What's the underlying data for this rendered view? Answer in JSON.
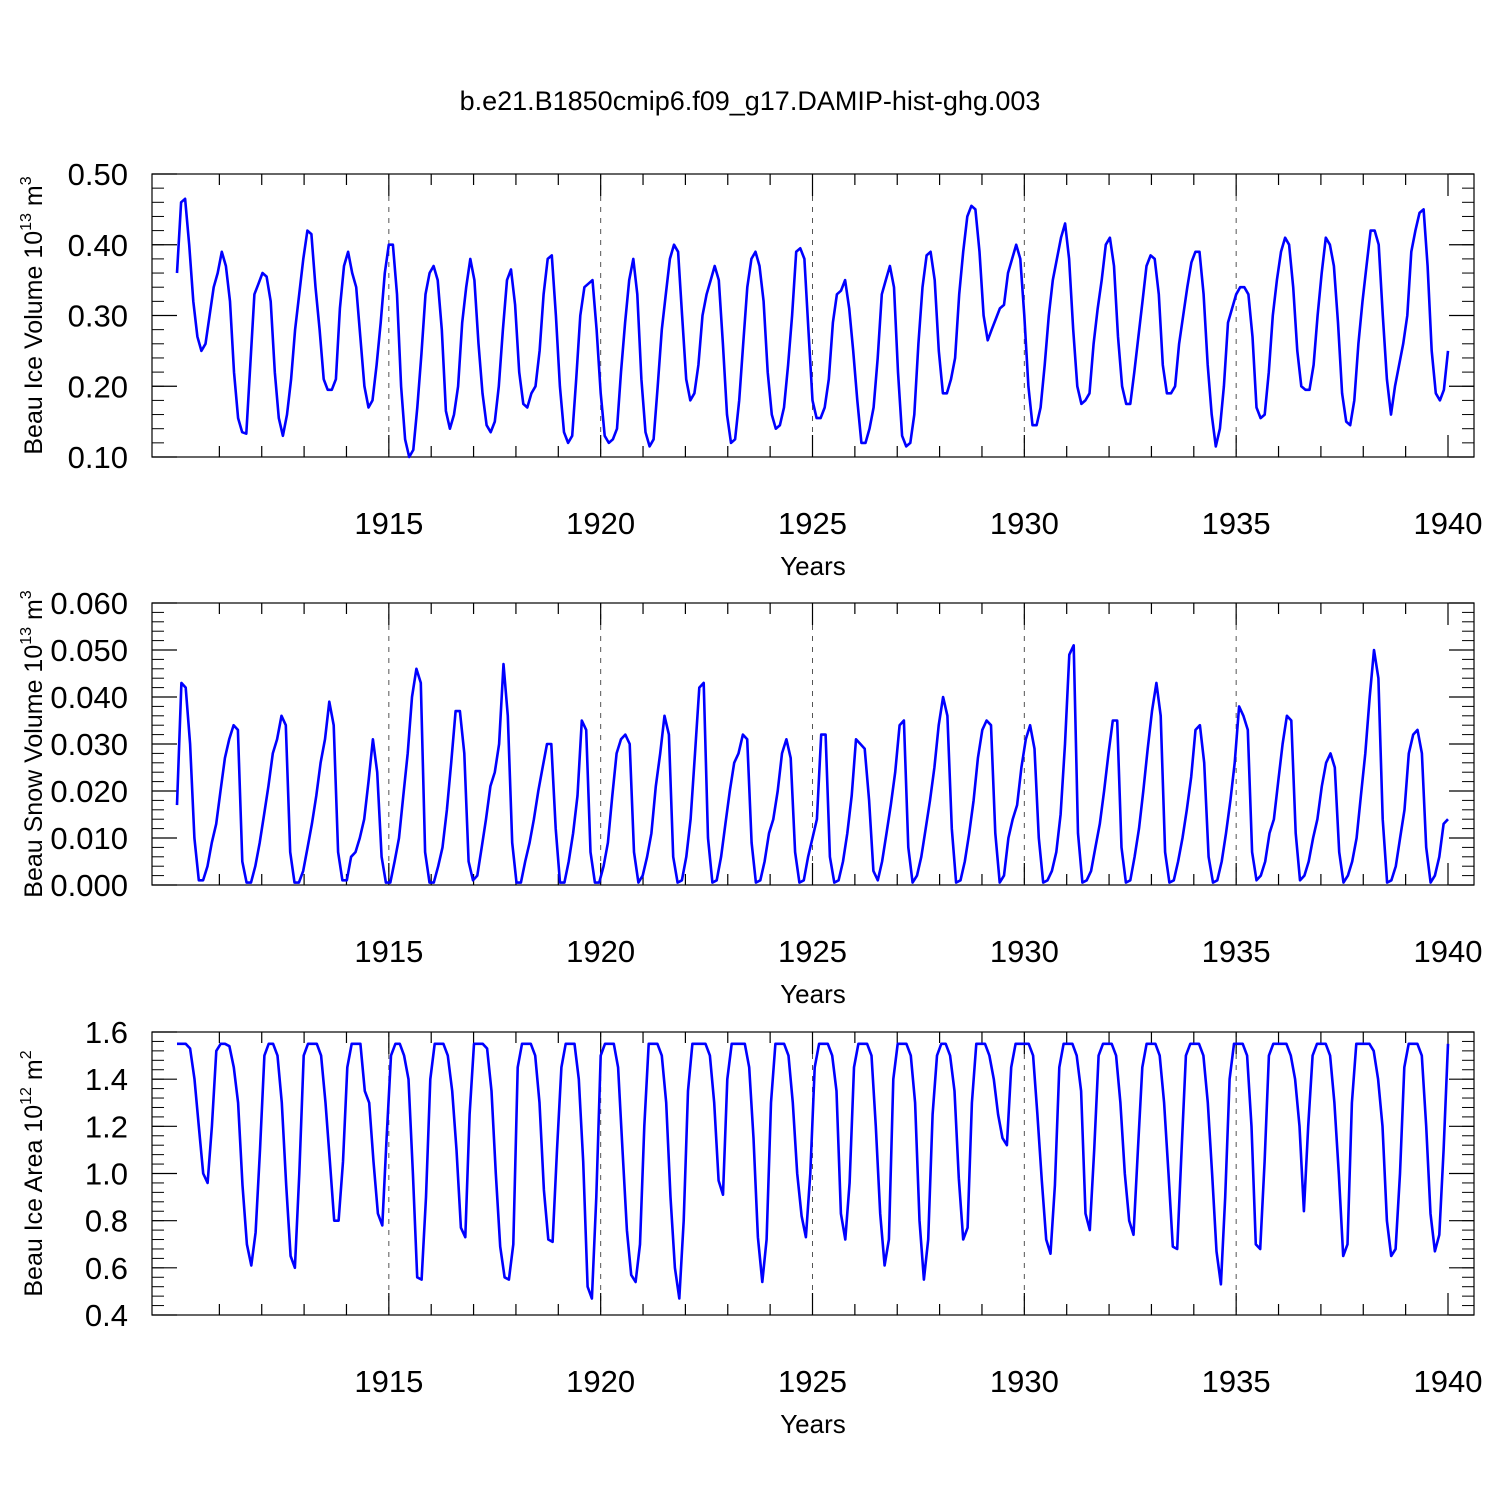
{
  "title": "b.e21.B1850cmip6.f09_g17.DAMIP-hist-ghg.003",
  "line_color": "#0000ff",
  "chart_data": [
    {
      "type": "line",
      "name": "ice-volume",
      "ylabel": "Beau Ice Volume 10",
      "ylabel_sup": "13",
      "ylabel_unit": "m",
      "ylabel_unit_sup": "3",
      "xlabel": "Years",
      "xlim": [
        1910.0,
        1940.0
      ],
      "ylim": [
        0.1,
        0.5
      ],
      "xticks": [
        1915,
        1920,
        1925,
        1930,
        1935,
        1940
      ],
      "xtick_labels": [
        "1915",
        "1920",
        "1925",
        "1930",
        "1935",
        "1940"
      ],
      "yticks": [
        0.1,
        0.2,
        0.3,
        0.4,
        0.5
      ],
      "ytick_labels": [
        "0.10",
        "0.20",
        "0.30",
        "0.40",
        "0.50"
      ],
      "y_minor_step": 0.02,
      "values": [
        0.36,
        0.46,
        0.465,
        0.4,
        0.32,
        0.27,
        0.25,
        0.26,
        0.3,
        0.34,
        0.36,
        0.39,
        0.37,
        0.32,
        0.22,
        0.155,
        0.135,
        0.133,
        0.23,
        0.33,
        0.345,
        0.36,
        0.355,
        0.32,
        0.22,
        0.155,
        0.13,
        0.16,
        0.21,
        0.28,
        0.33,
        0.38,
        0.42,
        0.415,
        0.34,
        0.28,
        0.21,
        0.195,
        0.195,
        0.21,
        0.31,
        0.37,
        0.39,
        0.36,
        0.34,
        0.27,
        0.2,
        0.17,
        0.18,
        0.23,
        0.29,
        0.36,
        0.4,
        0.4,
        0.33,
        0.2,
        0.125,
        0.1,
        0.11,
        0.17,
        0.245,
        0.33,
        0.36,
        0.37,
        0.35,
        0.28,
        0.165,
        0.14,
        0.16,
        0.2,
        0.29,
        0.34,
        0.38,
        0.35,
        0.26,
        0.19,
        0.145,
        0.135,
        0.15,
        0.2,
        0.28,
        0.35,
        0.365,
        0.315,
        0.22,
        0.175,
        0.17,
        0.19,
        0.2,
        0.25,
        0.33,
        0.38,
        0.385,
        0.3,
        0.2,
        0.135,
        0.12,
        0.13,
        0.21,
        0.3,
        0.34,
        0.345,
        0.35,
        0.28,
        0.19,
        0.13,
        0.12,
        0.125,
        0.14,
        0.22,
        0.29,
        0.35,
        0.38,
        0.33,
        0.21,
        0.135,
        0.115,
        0.125,
        0.2,
        0.28,
        0.33,
        0.38,
        0.4,
        0.39,
        0.3,
        0.21,
        0.18,
        0.19,
        0.23,
        0.3,
        0.33,
        0.35,
        0.37,
        0.35,
        0.26,
        0.16,
        0.12,
        0.125,
        0.18,
        0.26,
        0.34,
        0.38,
        0.39,
        0.37,
        0.32,
        0.22,
        0.16,
        0.14,
        0.145,
        0.17,
        0.23,
        0.3,
        0.39,
        0.395,
        0.38,
        0.28,
        0.18,
        0.155,
        0.155,
        0.17,
        0.21,
        0.29,
        0.33,
        0.335,
        0.35,
        0.31,
        0.25,
        0.18,
        0.12,
        0.12,
        0.14,
        0.17,
        0.24,
        0.33,
        0.35,
        0.37,
        0.34,
        0.22,
        0.13,
        0.115,
        0.12,
        0.16,
        0.26,
        0.34,
        0.385,
        0.39,
        0.35,
        0.25,
        0.19,
        0.19,
        0.21,
        0.24,
        0.33,
        0.39,
        0.44,
        0.455,
        0.45,
        0.39,
        0.3,
        0.265,
        0.28,
        0.295,
        0.31,
        0.315,
        0.36,
        0.38,
        0.4,
        0.38,
        0.3,
        0.2,
        0.145,
        0.145,
        0.17,
        0.23,
        0.3,
        0.35,
        0.38,
        0.41,
        0.43,
        0.38,
        0.28,
        0.2,
        0.175,
        0.18,
        0.19,
        0.26,
        0.31,
        0.35,
        0.4,
        0.41,
        0.37,
        0.27,
        0.2,
        0.175,
        0.175,
        0.22,
        0.27,
        0.32,
        0.37,
        0.385,
        0.38,
        0.33,
        0.23,
        0.19,
        0.19,
        0.2,
        0.26,
        0.3,
        0.34,
        0.375,
        0.39,
        0.39,
        0.33,
        0.23,
        0.16,
        0.115,
        0.14,
        0.2,
        0.29,
        0.31,
        0.33,
        0.34,
        0.34,
        0.33,
        0.27,
        0.17,
        0.155,
        0.16,
        0.22,
        0.3,
        0.35,
        0.39,
        0.41,
        0.4,
        0.34,
        0.25,
        0.2,
        0.195,
        0.195,
        0.23,
        0.3,
        0.36,
        0.41,
        0.4,
        0.37,
        0.29,
        0.19,
        0.15,
        0.145,
        0.18,
        0.26,
        0.32,
        0.37,
        0.42,
        0.42,
        0.4,
        0.3,
        0.21,
        0.16,
        0.2,
        0.23,
        0.26,
        0.3,
        0.39,
        0.42,
        0.445,
        0.45,
        0.37,
        0.25,
        0.19,
        0.18,
        0.195,
        0.25
      ]
    },
    {
      "type": "line",
      "name": "snow-volume",
      "ylabel": "Beau Snow Volume 10",
      "ylabel_sup": "13",
      "ylabel_unit": "m",
      "ylabel_unit_sup": "3",
      "xlabel": "Years",
      "xlim": [
        1910.0,
        1940.0
      ],
      "ylim": [
        0.0,
        0.06
      ],
      "xticks": [
        1915,
        1920,
        1925,
        1930,
        1935,
        1940
      ],
      "xtick_labels": [
        "1915",
        "1920",
        "1925",
        "1930",
        "1935",
        "1940"
      ],
      "yticks": [
        0.0,
        0.01,
        0.02,
        0.03,
        0.04,
        0.05,
        0.06
      ],
      "ytick_labels": [
        "0.000",
        "0.010",
        "0.020",
        "0.030",
        "0.040",
        "0.050",
        "0.060"
      ],
      "y_minor_step": 0.002,
      "values": [
        0.017,
        0.043,
        0.042,
        0.03,
        0.01,
        0.001,
        0.001,
        0.004,
        0.009,
        0.013,
        0.02,
        0.027,
        0.031,
        0.034,
        0.033,
        0.005,
        0.0005,
        0.0005,
        0.004,
        0.009,
        0.015,
        0.021,
        0.028,
        0.031,
        0.036,
        0.034,
        0.007,
        0.0005,
        0.0005,
        0.003,
        0.008,
        0.013,
        0.019,
        0.026,
        0.031,
        0.039,
        0.034,
        0.007,
        0.001,
        0.001,
        0.006,
        0.007,
        0.01,
        0.014,
        0.022,
        0.031,
        0.024,
        0.006,
        0.0005,
        0.0005,
        0.005,
        0.01,
        0.019,
        0.028,
        0.04,
        0.046,
        0.043,
        0.007,
        0.0005,
        0.0005,
        0.004,
        0.008,
        0.016,
        0.026,
        0.037,
        0.037,
        0.028,
        0.005,
        0.001,
        0.002,
        0.008,
        0.014,
        0.021,
        0.024,
        0.03,
        0.047,
        0.036,
        0.009,
        0.0005,
        0.0005,
        0.005,
        0.009,
        0.014,
        0.02,
        0.025,
        0.03,
        0.03,
        0.012,
        0.0005,
        0.0005,
        0.005,
        0.011,
        0.019,
        0.035,
        0.033,
        0.007,
        0.0005,
        0.0005,
        0.004,
        0.009,
        0.019,
        0.028,
        0.031,
        0.032,
        0.03,
        0.007,
        0.0005,
        0.002,
        0.006,
        0.011,
        0.021,
        0.028,
        0.036,
        0.032,
        0.006,
        0.0005,
        0.001,
        0.006,
        0.014,
        0.028,
        0.042,
        0.043,
        0.01,
        0.0005,
        0.001,
        0.006,
        0.013,
        0.02,
        0.026,
        0.028,
        0.032,
        0.031,
        0.009,
        0.0005,
        0.001,
        0.005,
        0.011,
        0.014,
        0.02,
        0.028,
        0.031,
        0.027,
        0.007,
        0.0005,
        0.001,
        0.006,
        0.01,
        0.014,
        0.032,
        0.032,
        0.006,
        0.0005,
        0.001,
        0.005,
        0.011,
        0.019,
        0.031,
        0.03,
        0.029,
        0.018,
        0.003,
        0.001,
        0.005,
        0.011,
        0.017,
        0.024,
        0.034,
        0.035,
        0.008,
        0.0005,
        0.002,
        0.006,
        0.012,
        0.018,
        0.025,
        0.034,
        0.04,
        0.036,
        0.012,
        0.0005,
        0.001,
        0.005,
        0.011,
        0.018,
        0.027,
        0.033,
        0.035,
        0.034,
        0.011,
        0.0005,
        0.002,
        0.01,
        0.014,
        0.017,
        0.025,
        0.031,
        0.034,
        0.029,
        0.01,
        0.0005,
        0.001,
        0.003,
        0.007,
        0.015,
        0.03,
        0.049,
        0.051,
        0.011,
        0.0005,
        0.001,
        0.003,
        0.008,
        0.013,
        0.02,
        0.028,
        0.035,
        0.035,
        0.008,
        0.0005,
        0.001,
        0.006,
        0.012,
        0.02,
        0.029,
        0.037,
        0.043,
        0.036,
        0.007,
        0.0005,
        0.001,
        0.005,
        0.01,
        0.016,
        0.023,
        0.033,
        0.034,
        0.026,
        0.006,
        0.0005,
        0.001,
        0.005,
        0.011,
        0.018,
        0.026,
        0.038,
        0.036,
        0.033,
        0.007,
        0.001,
        0.002,
        0.005,
        0.011,
        0.014,
        0.022,
        0.03,
        0.036,
        0.035,
        0.011,
        0.001,
        0.002,
        0.005,
        0.01,
        0.014,
        0.021,
        0.026,
        0.028,
        0.025,
        0.007,
        0.0005,
        0.002,
        0.005,
        0.01,
        0.019,
        0.028,
        0.04,
        0.05,
        0.044,
        0.014,
        0.0005,
        0.001,
        0.004,
        0.01,
        0.016,
        0.028,
        0.032,
        0.033,
        0.028,
        0.008,
        0.0005,
        0.002,
        0.006,
        0.013,
        0.014
      ]
    },
    {
      "type": "line",
      "name": "ice-area",
      "ylabel": "Beau Ice Area 10",
      "ylabel_sup": "12",
      "ylabel_unit": "m",
      "ylabel_unit_sup": "2",
      "xlabel": "Years",
      "xlim": [
        1910.0,
        1940.0
      ],
      "ylim": [
        0.4,
        1.6
      ],
      "xticks": [
        1915,
        1920,
        1925,
        1930,
        1935,
        1940
      ],
      "xtick_labels": [
        "1915",
        "1920",
        "1925",
        "1930",
        "1935",
        "1940"
      ],
      "yticks": [
        0.4,
        0.6,
        0.8,
        1.0,
        1.2,
        1.4,
        1.6
      ],
      "ytick_labels": [
        "0.4",
        "0.6",
        "0.8",
        "1.0",
        "1.2",
        "1.4",
        "1.6"
      ],
      "y_minor_step": 0.04,
      "values": [
        1.55,
        1.55,
        1.55,
        1.53,
        1.4,
        1.2,
        1.0,
        0.96,
        1.2,
        1.52,
        1.55,
        1.55,
        1.54,
        1.45,
        1.3,
        0.95,
        0.7,
        0.61,
        0.75,
        1.1,
        1.5,
        1.55,
        1.55,
        1.5,
        1.3,
        0.95,
        0.65,
        0.6,
        1.0,
        1.5,
        1.55,
        1.55,
        1.55,
        1.5,
        1.3,
        1.05,
        0.8,
        0.8,
        1.05,
        1.45,
        1.55,
        1.55,
        1.55,
        1.35,
        1.3,
        1.05,
        0.83,
        0.78,
        1.15,
        1.5,
        1.55,
        1.55,
        1.5,
        1.4,
        1.0,
        0.56,
        0.55,
        0.9,
        1.4,
        1.55,
        1.55,
        1.55,
        1.5,
        1.35,
        1.1,
        0.77,
        0.73,
        1.25,
        1.55,
        1.55,
        1.55,
        1.53,
        1.35,
        1.0,
        0.69,
        0.56,
        0.55,
        0.7,
        1.45,
        1.55,
        1.55,
        1.55,
        1.5,
        1.3,
        0.93,
        0.72,
        0.71,
        1.1,
        1.45,
        1.55,
        1.55,
        1.55,
        1.4,
        1.05,
        0.52,
        0.47,
        0.9,
        1.5,
        1.55,
        1.55,
        1.55,
        1.45,
        1.1,
        0.76,
        0.57,
        0.54,
        0.7,
        1.2,
        1.55,
        1.55,
        1.55,
        1.5,
        1.3,
        0.9,
        0.6,
        0.47,
        0.8,
        1.35,
        1.55,
        1.55,
        1.55,
        1.55,
        1.5,
        1.3,
        0.97,
        0.91,
        1.4,
        1.55,
        1.55,
        1.55,
        1.55,
        1.45,
        1.15,
        0.73,
        0.54,
        0.72,
        1.3,
        1.55,
        1.55,
        1.55,
        1.5,
        1.3,
        1.0,
        0.82,
        0.73,
        1.0,
        1.45,
        1.55,
        1.55,
        1.55,
        1.5,
        1.35,
        0.83,
        0.72,
        0.96,
        1.45,
        1.55,
        1.55,
        1.55,
        1.5,
        1.2,
        0.83,
        0.61,
        0.72,
        1.4,
        1.55,
        1.55,
        1.55,
        1.5,
        1.3,
        0.8,
        0.55,
        0.72,
        1.25,
        1.5,
        1.55,
        1.55,
        1.5,
        1.35,
        0.98,
        0.72,
        0.77,
        1.3,
        1.55,
        1.55,
        1.55,
        1.5,
        1.4,
        1.25,
        1.15,
        1.12,
        1.45,
        1.55,
        1.55,
        1.55,
        1.55,
        1.5,
        1.25,
        0.97,
        0.72,
        0.66,
        0.95,
        1.45,
        1.55,
        1.55,
        1.55,
        1.5,
        1.35,
        0.83,
        0.76,
        1.1,
        1.5,
        1.55,
        1.55,
        1.55,
        1.5,
        1.3,
        1.0,
        0.8,
        0.74,
        1.1,
        1.45,
        1.55,
        1.55,
        1.55,
        1.5,
        1.3,
        1.0,
        0.69,
        0.68,
        1.1,
        1.5,
        1.55,
        1.55,
        1.55,
        1.5,
        1.3,
        1.0,
        0.67,
        0.53,
        0.9,
        1.4,
        1.55,
        1.55,
        1.55,
        1.5,
        1.2,
        0.7,
        0.68,
        1.05,
        1.5,
        1.55,
        1.55,
        1.55,
        1.55,
        1.5,
        1.4,
        1.2,
        0.84,
        1.2,
        1.5,
        1.55,
        1.55,
        1.55,
        1.5,
        1.3,
        1.0,
        0.65,
        0.7,
        1.3,
        1.55,
        1.55,
        1.55,
        1.55,
        1.52,
        1.4,
        1.2,
        0.8,
        0.65,
        0.68,
        1.0,
        1.45,
        1.55,
        1.55,
        1.55,
        1.5,
        1.2,
        0.83,
        0.67,
        0.74,
        1.1,
        1.55
      ]
    }
  ]
}
